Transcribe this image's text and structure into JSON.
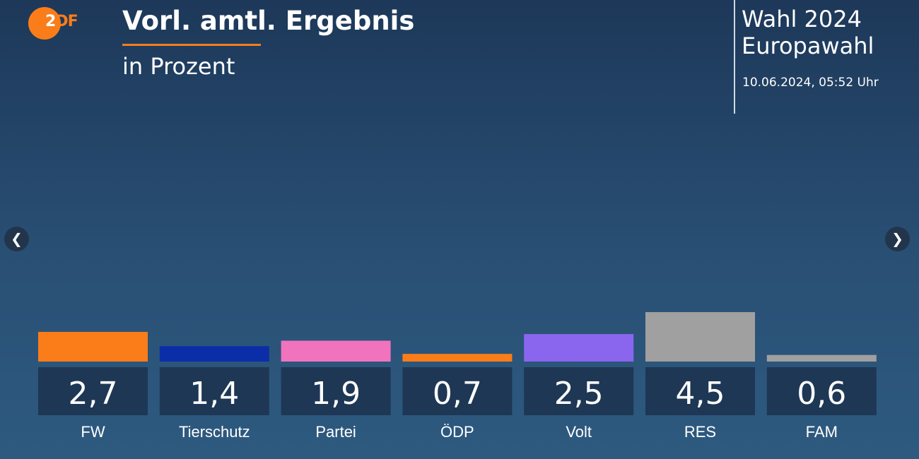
{
  "logo": {
    "text_first": "2",
    "text_rest": "DF",
    "color": "#fa7d19"
  },
  "header": {
    "title": "Vorl. amtl. Ergebnis",
    "subtitle": "in Prozent",
    "election_line1": "Wahl 2024",
    "election_line2": "Europawahl",
    "timestamp": "10.06.2024, 05:52 Uhr"
  },
  "nav": {
    "prev_icon": "chevron-left-icon",
    "next_icon": "chevron-right-icon"
  },
  "chart_data": {
    "type": "bar",
    "categories": [
      "FW",
      "Tierschutz",
      "Partei",
      "ÖDP",
      "Volt",
      "RES",
      "FAM"
    ],
    "values": [
      2.7,
      1.4,
      1.9,
      0.7,
      2.5,
      4.5,
      0.6
    ],
    "value_labels": [
      "2,7",
      "1,4",
      "1,9",
      "0,7",
      "2,5",
      "4,5",
      "0,6"
    ],
    "colors": [
      "#fa7d19",
      "#0b2ea8",
      "#f173bd",
      "#fa7d19",
      "#8a66ee",
      "#a0a0a0",
      "#a0a0a0"
    ],
    "title": "Vorl. amtl. Ergebnis",
    "ylabel": "in Prozent",
    "ylim": [
      0,
      4.5
    ],
    "grid": false,
    "legend": "none"
  }
}
